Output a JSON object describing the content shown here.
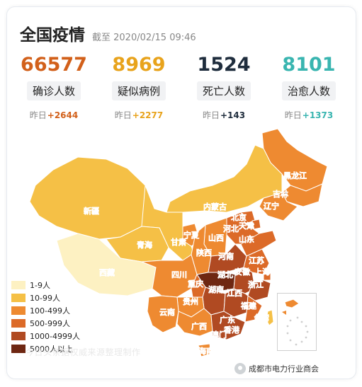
{
  "header": {
    "title": "全国疫情",
    "as_of": "截至 2020/02/15 09:46"
  },
  "stats": [
    {
      "value": "66577",
      "label": "确诊人数",
      "yesterday_prefix": "昨日",
      "yesterday_delta": "+2644",
      "color": "#d2601a"
    },
    {
      "value": "8969",
      "label": "疑似病例",
      "yesterday_prefix": "昨日",
      "yesterday_delta": "+2277",
      "color": "#e8a31c"
    },
    {
      "value": "1524",
      "label": "死亡人数",
      "yesterday_prefix": "昨日",
      "yesterday_delta": "+143",
      "color": "#1f2d3d"
    },
    {
      "value": "8101",
      "label": "治愈人数",
      "yesterday_prefix": "昨日",
      "yesterday_delta": "+1373",
      "color": "#39b5b0"
    }
  ],
  "map": {
    "provinces": [
      "黑龙江",
      "吉林",
      "辽宁",
      "内蒙古",
      "新疆",
      "北京",
      "天津",
      "河北",
      "宁夏",
      "山西",
      "山东",
      "甘肃",
      "青海",
      "陕西",
      "河南",
      "江苏",
      "西藏",
      "四川",
      "湖北",
      "安徽",
      "上海",
      "重庆",
      "浙江",
      "湖南",
      "江西",
      "贵州",
      "云南",
      "福建",
      "广西",
      "广东",
      "台湾",
      "澳门",
      "香港",
      "海南"
    ]
  },
  "legend": [
    {
      "label": "1-9人",
      "color": "#fdf1c2"
    },
    {
      "label": "10-99人",
      "color": "#f5c046"
    },
    {
      "label": "100-499人",
      "color": "#ee8a31"
    },
    {
      "label": "500-999人",
      "color": "#dc6a28"
    },
    {
      "label": "1000-4999人",
      "color": "#b04a22"
    },
    {
      "label": "5000人以上",
      "color": "#6e2712"
    }
  ],
  "source": "今日头条据权威来源整理制作",
  "watermark": "成都市电力行业商会"
}
